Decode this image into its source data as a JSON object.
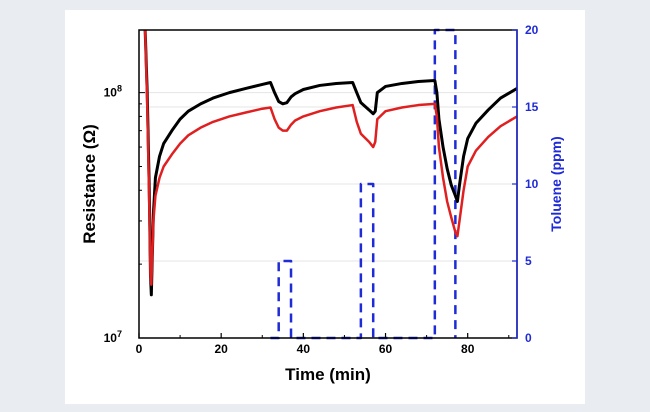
{
  "chart_data": {
    "type": "line",
    "xlabel": "Time (min)",
    "ylabel": "Resistance (Ω)",
    "ylabel_right": "Toluene (ppm)",
    "xlim": [
      0,
      92
    ],
    "xticks": [
      0,
      20,
      40,
      60,
      80
    ],
    "ylim": [
      10000000,
      180000000
    ],
    "yscale": "log",
    "y_tick_labels": [
      {
        "value": 10000000,
        "base": "10",
        "exp": "7"
      },
      {
        "value": 100000000,
        "base": "10",
        "exp": "8"
      }
    ],
    "y2lim": [
      0,
      20
    ],
    "y2ticks": [
      0,
      5,
      10,
      15,
      20
    ],
    "grid": true,
    "colors": {
      "black_series": "#000000",
      "red_series": "#e02020",
      "toluene": "#1f2bd6"
    },
    "series": [
      {
        "color": "black",
        "x": [
          1.5,
          2,
          2.5,
          2.8,
          3,
          3.5,
          4,
          5,
          6,
          8,
          10,
          12,
          15,
          18,
          22,
          26,
          30,
          32,
          33,
          34,
          35,
          36,
          37,
          38,
          40,
          44,
          48,
          52,
          53,
          54,
          56,
          57,
          57.5,
          58,
          60,
          64,
          68,
          72,
          72.5,
          73,
          74,
          75,
          76,
          77,
          77.5,
          78,
          79,
          80,
          82,
          85,
          88,
          92
        ],
        "y": [
          180000000,
          100000000,
          40000000,
          18000000,
          15000000,
          32000000,
          45000000,
          55000000,
          62000000,
          70000000,
          78000000,
          84000000,
          90000000,
          95000000,
          100000000,
          104000000,
          108000000,
          110000000,
          100000000,
          92000000,
          90000000,
          91000000,
          96000000,
          99000000,
          103000000,
          107000000,
          109000000,
          110000000,
          100000000,
          91000000,
          85000000,
          82000000,
          84000000,
          100000000,
          106000000,
          109000000,
          111000000,
          112000000,
          100000000,
          78000000,
          60000000,
          49000000,
          42000000,
          38000000,
          36000000,
          42000000,
          55000000,
          65000000,
          75000000,
          85000000,
          95000000,
          104000000
        ]
      },
      {
        "color": "red",
        "x": [
          1.5,
          2,
          2.5,
          2.8,
          3,
          3.5,
          4,
          5,
          6,
          8,
          10,
          12,
          15,
          18,
          22,
          26,
          30,
          32,
          33,
          34,
          35,
          36,
          37,
          38,
          40,
          44,
          48,
          52,
          53,
          54,
          56,
          57,
          57.5,
          58,
          60,
          64,
          68,
          72,
          72.5,
          73,
          74,
          75,
          76,
          77,
          77.5,
          78,
          79,
          80,
          82,
          85,
          88,
          92
        ],
        "y": [
          180000000,
          90000000,
          35000000,
          18000000,
          16500000,
          30000000,
          38000000,
          45000000,
          50000000,
          56000000,
          62000000,
          67000000,
          72000000,
          76000000,
          80000000,
          83000000,
          86000000,
          87000000,
          78000000,
          72000000,
          70000000,
          70000000,
          74000000,
          77000000,
          80000000,
          84000000,
          87000000,
          89000000,
          76000000,
          68000000,
          63000000,
          60000000,
          63000000,
          78000000,
          84000000,
          87000000,
          89000000,
          90000000,
          80000000,
          60000000,
          45000000,
          36000000,
          31000000,
          27000000,
          26000000,
          30000000,
          40000000,
          50000000,
          58000000,
          66000000,
          73000000,
          80000000
        ]
      },
      {
        "name": "Toluene (ppm)",
        "color": "blue-dashed",
        "axis": "right",
        "x": [
          32,
          34,
          34,
          37,
          37,
          52,
          54,
          54,
          57,
          57,
          72,
          72,
          77,
          77
        ],
        "y": [
          0,
          0,
          5,
          5,
          0,
          0,
          0,
          10,
          10,
          0,
          0,
          20,
          20,
          0
        ]
      }
    ]
  }
}
